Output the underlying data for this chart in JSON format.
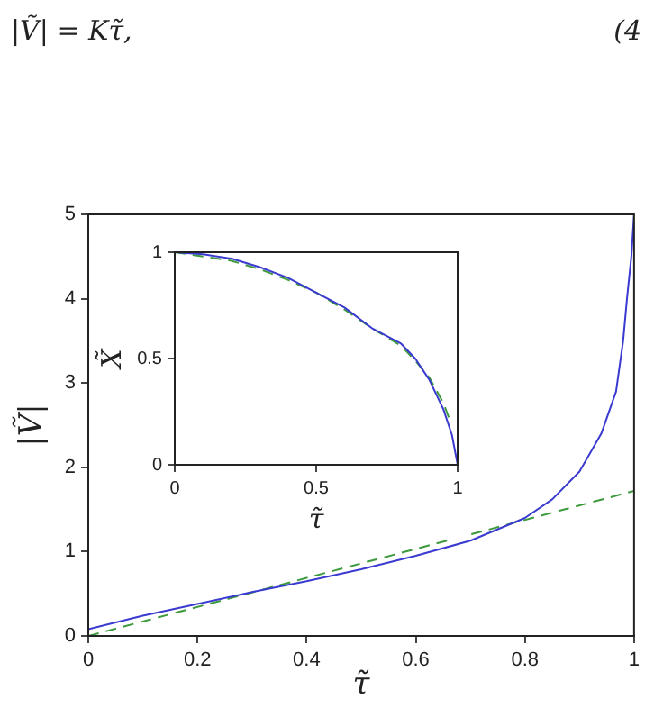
{
  "chart_data": [
    {
      "type": "line",
      "xlabel": "τ̃",
      "ylabel": "|Ṽ|",
      "xlim": [
        0,
        1
      ],
      "ylim": [
        0,
        5
      ],
      "xticks": [
        0,
        0.2,
        0.4,
        0.6,
        0.8,
        1
      ],
      "yticks": [
        0,
        1,
        2,
        3,
        4,
        5
      ],
      "grid": false,
      "legend": false,
      "marker": "none",
      "annotations": [
        "|Ṽ| = Kτ̃,",
        "(4"
      ],
      "series": [
        {
          "color": "#3a3ad0",
          "line_style": "solid",
          "x": [
            0,
            0.1,
            0.2,
            0.3,
            0.4,
            0.5,
            0.6,
            0.7,
            0.8,
            0.85,
            0.9,
            0.94,
            0.967,
            0.98,
            0.987,
            0.995,
            1
          ],
          "values": [
            0.08,
            0.24,
            0.38,
            0.52,
            0.65,
            0.79,
            0.95,
            1.13,
            1.4,
            1.62,
            1.95,
            2.4,
            2.9,
            3.5,
            4.0,
            4.5,
            5
          ]
        },
        {
          "color": "#3c9a3c",
          "line_style": "dashed",
          "x": [
            0,
            1
          ],
          "values": [
            0,
            1.72
          ]
        }
      ]
    },
    {
      "type": "line",
      "xlabel": "τ̃",
      "ylabel": "X̃",
      "xlim": [
        0,
        1
      ],
      "ylim": [
        0,
        1
      ],
      "xticks": [
        0,
        0.5,
        1
      ],
      "yticks": [
        0,
        0.5,
        1
      ],
      "grid": false,
      "legend": false,
      "marker": "none",
      "series": [
        {
          "color": "#3a3ad0",
          "line_style": "solid",
          "x": [
            0,
            0.1,
            0.2,
            0.3,
            0.4,
            0.5,
            0.6,
            0.7,
            0.8,
            0.85,
            0.9,
            0.95,
            0.98,
            1
          ],
          "values": [
            1,
            0.99,
            0.97,
            0.93,
            0.88,
            0.81,
            0.74,
            0.64,
            0.57,
            0.5,
            0.4,
            0.26,
            0.14,
            0
          ]
        },
        {
          "color": "#3c9a3c",
          "line_style": "dashed",
          "x": [
            0,
            0.1,
            0.2,
            0.3,
            0.4,
            0.5,
            0.6,
            0.7,
            0.8,
            0.85,
            0.9,
            0.95,
            0.975
          ],
          "values": [
            1,
            0.98,
            0.96,
            0.92,
            0.87,
            0.81,
            0.73,
            0.64,
            0.56,
            0.49,
            0.41,
            0.29,
            0.2
          ]
        }
      ]
    }
  ]
}
